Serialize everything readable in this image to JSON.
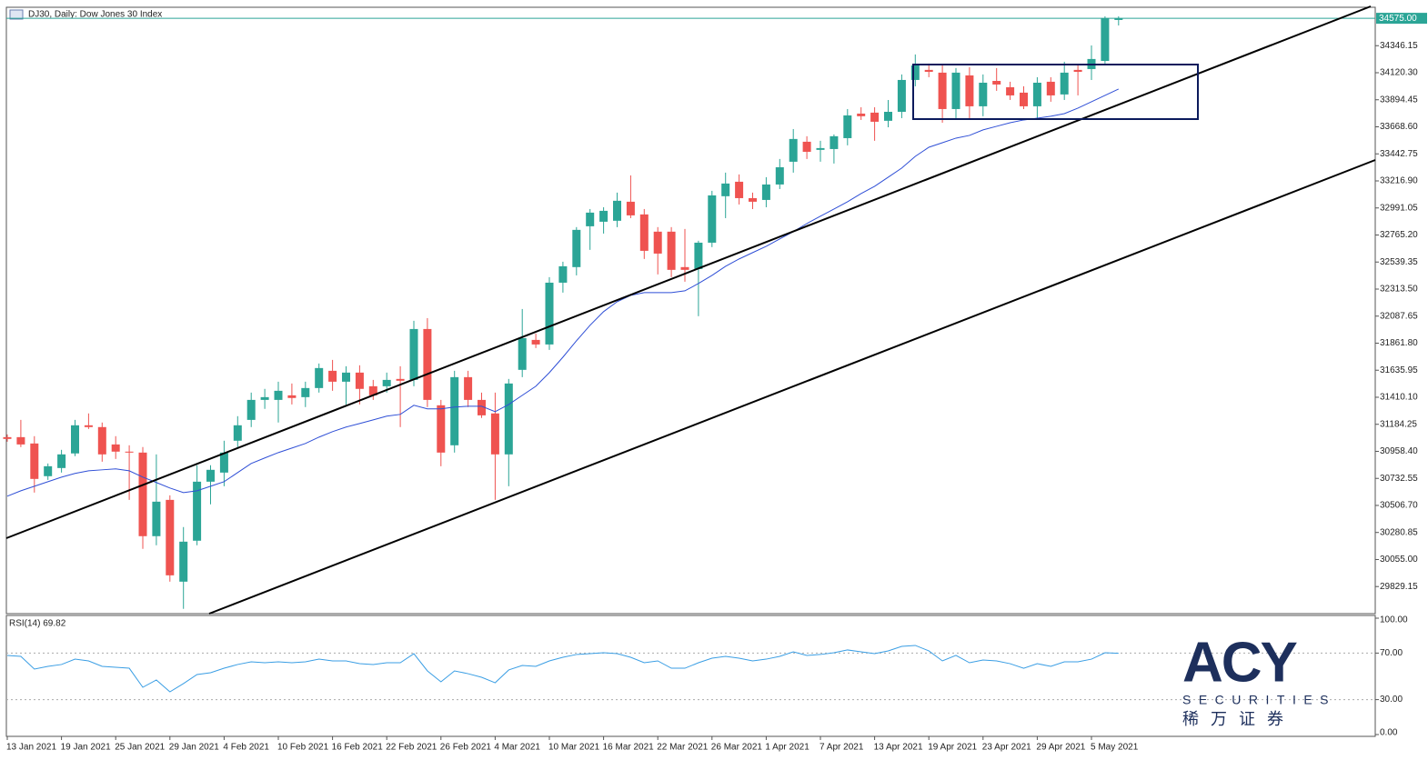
{
  "chart_data": [
    {
      "type": "candlestick",
      "title": "DJ30, Daily:  Dow Jones 30 Index",
      "categories": [
        "13 Jan 2021",
        null,
        null,
        null,
        "19 Jan 2021",
        null,
        null,
        null,
        "25 Jan 2021",
        null,
        null,
        null,
        "29 Jan 2021",
        null,
        null,
        null,
        "4 Feb 2021",
        null,
        null,
        null,
        "10 Feb 2021",
        null,
        null,
        null,
        "16 Feb 2021",
        null,
        null,
        null,
        "22 Feb 2021",
        null,
        null,
        null,
        "26 Feb 2021",
        null,
        null,
        null,
        "4 Mar 2021",
        null,
        null,
        null,
        "10 Mar 2021",
        null,
        null,
        null,
        "16 Mar 2021",
        null,
        null,
        null,
        "22 Mar 2021",
        null,
        null,
        null,
        "26 Mar 2021",
        null,
        null,
        null,
        "1 Apr 2021",
        null,
        null,
        null,
        "7 Apr 2021",
        null,
        null,
        null,
        "13 Apr 2021",
        null,
        null,
        null,
        "19 Apr 2021",
        null,
        null,
        null,
        "23 Apr 2021",
        null,
        null,
        null,
        "29 Apr 2021",
        null,
        null,
        null,
        "5 May 2021",
        null,
        null
      ],
      "open": [
        31077,
        31077,
        31024,
        30751,
        30819,
        30941,
        31176,
        31161,
        31016,
        30956,
        30948,
        30250,
        30553,
        29870,
        30212,
        30705,
        30781,
        31047,
        31221,
        31388,
        31388,
        31426,
        31411,
        31487,
        31631,
        31540,
        31616,
        31502,
        31502,
        31563,
        31555,
        31980,
        31343,
        31009,
        31578,
        31388,
        31275,
        30933,
        31639,
        31889,
        31851,
        32367,
        32497,
        32838,
        32876,
        32884,
        33043,
        32937,
        32793,
        32793,
        32497,
        32481,
        32701,
        33089,
        33210,
        33073,
        33058,
        33187,
        33377,
        33544,
        33476,
        33483,
        33574,
        33779,
        33787,
        33719,
        33794,
        34060,
        34144,
        34121,
        33817,
        34098,
        33840,
        34052,
        33999,
        33954,
        33840,
        34045,
        33939,
        34144,
        34151,
        34219,
        34561
      ],
      "high": [
        31100,
        31221,
        31085,
        30857,
        30971,
        31221,
        31275,
        31199,
        31085,
        31009,
        30994,
        30933,
        30591,
        30326,
        30842,
        30842,
        31047,
        31252,
        31449,
        31480,
        31540,
        31525,
        31540,
        31692,
        31722,
        31669,
        31677,
        31555,
        31616,
        31669,
        32049,
        32071,
        31388,
        31631,
        31631,
        31449,
        31449,
        31563,
        32147,
        31942,
        32413,
        32542,
        32831,
        32982,
        32997,
        33119,
        33263,
        32982,
        32831,
        32831,
        32815,
        32717,
        33134,
        33286,
        33271,
        33119,
        33248,
        33400,
        33650,
        33590,
        33552,
        33605,
        33817,
        33832,
        33832,
        33893,
        34106,
        34273,
        34197,
        34181,
        34159,
        34166,
        34106,
        34159,
        34045,
        34007,
        34083,
        34083,
        34212,
        34181,
        34348,
        34591,
        34591
      ],
      "low": [
        31039,
        30994,
        30614,
        30720,
        30781,
        30918,
        31145,
        30872,
        30895,
        30553,
        30144,
        30174,
        29870,
        29643,
        30174,
        30516,
        30667,
        30994,
        31161,
        31313,
        31199,
        31350,
        31328,
        31449,
        31464,
        31350,
        31350,
        31388,
        31449,
        31161,
        31502,
        31328,
        30834,
        30948,
        31328,
        31237,
        30553,
        30667,
        31578,
        31821,
        31806,
        32284,
        32428,
        32641,
        32777,
        32831,
        32906,
        32565,
        32436,
        32413,
        32375,
        32087,
        32664,
        32906,
        33020,
        32982,
        32997,
        33149,
        33286,
        33400,
        33377,
        33362,
        33514,
        33726,
        33552,
        33665,
        33741,
        34007,
        34083,
        33703,
        33741,
        33741,
        33757,
        33969,
        33893,
        33817,
        33741,
        33878,
        33893,
        33931,
        34060,
        34197,
        34515
      ],
      "close": [
        31062,
        31016,
        30728,
        30834,
        30933,
        31176,
        31161,
        30933,
        30956,
        30948,
        30250,
        30538,
        29923,
        30204,
        30705,
        30804,
        30948,
        31176,
        31388,
        31411,
        31464,
        31404,
        31487,
        31654,
        31540,
        31616,
        31480,
        31426,
        31555,
        31548,
        31980,
        31388,
        30948,
        31578,
        31388,
        31259,
        30933,
        31525,
        31904,
        31851,
        32367,
        32504,
        32808,
        32952,
        32967,
        33051,
        32929,
        32633,
        32610,
        32474,
        32474,
        32701,
        33096,
        33195,
        33073,
        33043,
        33187,
        33331,
        33567,
        33460,
        33491,
        33590,
        33764,
        33757,
        33711,
        33794,
        34060,
        34181,
        34128,
        33817,
        34121,
        33840,
        34037,
        34022,
        33931,
        33840,
        34037,
        33931,
        34121,
        34128,
        34235,
        34576,
        34576
      ],
      "up_color": "#2ba596",
      "down_color": "#ef5350",
      "moving_average": {
        "color": "#2f4fd6",
        "values": [
          30584,
          30629,
          30667,
          30705,
          30743,
          30774,
          30796,
          30804,
          30812,
          30796,
          30743,
          30698,
          30652,
          30614,
          30629,
          30667,
          30705,
          30781,
          30857,
          30903,
          30948,
          30986,
          31024,
          31077,
          31123,
          31161,
          31191,
          31221,
          31252,
          31267,
          31343,
          31313,
          31313,
          31328,
          31335,
          31335,
          31290,
          31350,
          31426,
          31502,
          31616,
          31745,
          31882,
          32011,
          32125,
          32208,
          32261,
          32284,
          32284,
          32284,
          32299,
          32360,
          32428,
          32504,
          32565,
          32618,
          32671,
          32732,
          32793,
          32861,
          32922,
          32982,
          33043,
          33111,
          33172,
          33248,
          33324,
          33422,
          33498,
          33536,
          33574,
          33597,
          33643,
          33673,
          33703,
          33726,
          33741,
          33757,
          33779,
          33825,
          33878,
          33931,
          33984
        ]
      },
      "ylim": [
        29603,
        34667
      ],
      "yticks": [
        34346.15,
        {
          "value": 34120.3,
          "label": "34120.30"
        },
        33894.45,
        {
          "value": 33668.6,
          "label": "33668.60"
        },
        33442.75,
        {
          "value": 33216.9,
          "label": "33216.90"
        },
        32991.05,
        {
          "value": 32765.2,
          "label": "32765.20"
        },
        32539.35,
        {
          "value": 32313.5,
          "label": "32313.50"
        },
        32087.65,
        {
          "value": 31861.8,
          "label": "31861.80"
        },
        31635.95,
        {
          "value": 31410.1,
          "label": "31410.10"
        },
        31184.25,
        {
          "value": 30958.4,
          "label": "30958.40"
        },
        30732.55,
        {
          "value": 30506.7,
          "label": "30506.70"
        },
        30280.85,
        {
          "value": 30055,
          "label": "30055.00"
        },
        29829.15
      ],
      "last_price": {
        "value": 34575,
        "label": "34575.00"
      },
      "last_price_color": "#2ba596"
    },
    {
      "type": "line",
      "title": "RSI(14) 69.82",
      "color": "#3a9ee4",
      "values": [
        68.0,
        67.2,
        56.3,
        58.6,
        60.2,
        64.8,
        63.3,
        58.6,
        57.8,
        57.0,
        40.6,
        46.9,
        36.7,
        43.8,
        51.6,
        53.1,
        57.0,
        60.2,
        62.5,
        61.7,
        62.5,
        61.7,
        62.5,
        64.8,
        63.3,
        63.3,
        60.9,
        60.2,
        61.7,
        61.7,
        69.5,
        54.7,
        45.3,
        54.7,
        52.3,
        49.2,
        44.5,
        55.5,
        59.4,
        58.6,
        63.3,
        66.4,
        68.8,
        69.5,
        70.3,
        69.5,
        66.4,
        61.7,
        63.3,
        57.0,
        57.0,
        61.7,
        65.6,
        67.2,
        65.6,
        63.3,
        64.8,
        67.2,
        71.1,
        68.0,
        68.8,
        70.3,
        72.7,
        71.1,
        69.5,
        71.9,
        75.8,
        76.6,
        71.9,
        63.3,
        68.0,
        61.7,
        64.1,
        63.3,
        60.9,
        57.0,
        60.9,
        58.6,
        62.5,
        62.5,
        64.8,
        70.3,
        69.82
      ],
      "ylim": [
        0,
        100
      ],
      "yticks": [
        {
          "value": 100,
          "label": "100.00"
        },
        {
          "value": 70,
          "label": "70.00"
        },
        {
          "value": 30,
          "label": "30.00"
        },
        {
          "value": 0,
          "label": "0.00"
        }
      ],
      "levels": [
        70,
        30
      ]
    }
  ],
  "logo": {
    "name": "ACY",
    "tagline": "SECURITIES",
    "chinese": "稀 万 证 券"
  }
}
